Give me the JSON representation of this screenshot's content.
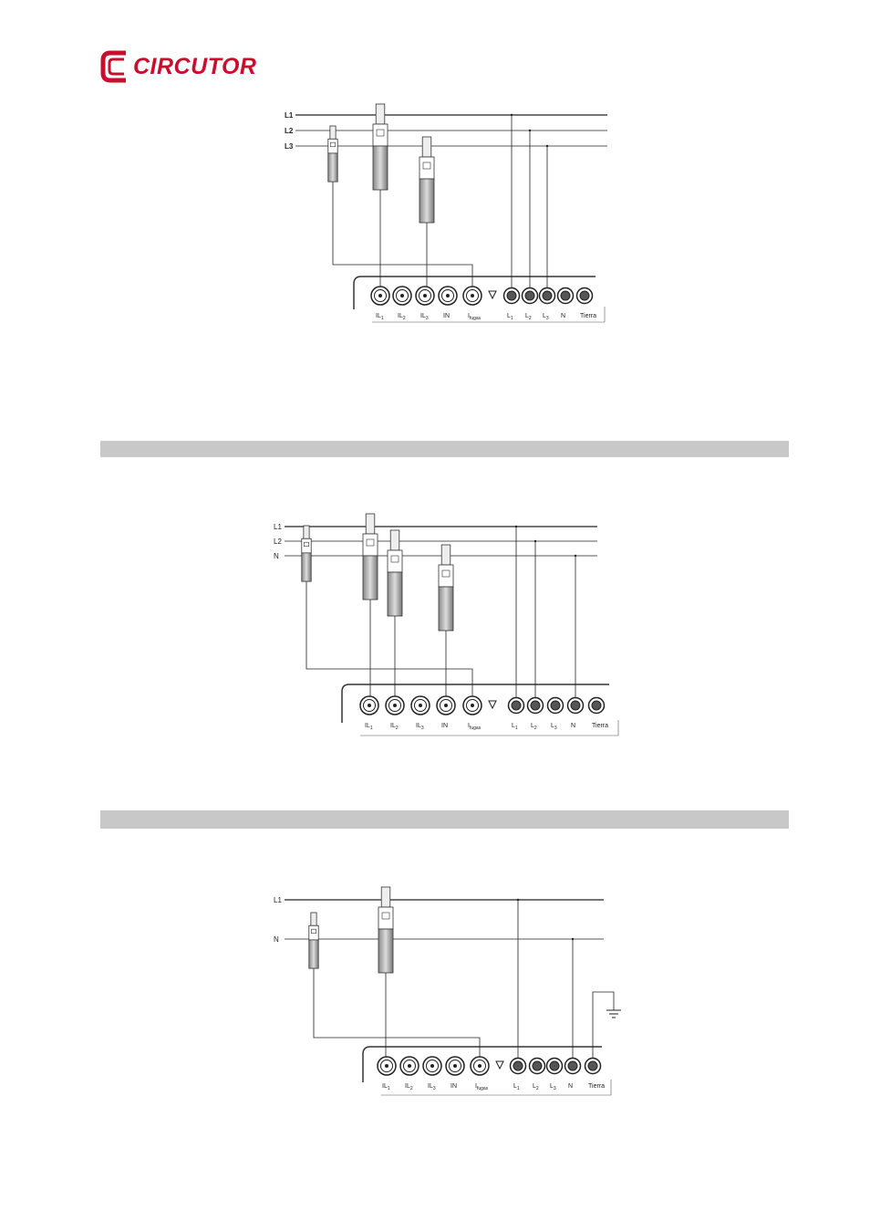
{
  "header": {
    "logo": "CIRCUTOR"
  },
  "diagrams": [
    {
      "lines": [
        "L1",
        "L2",
        "L3"
      ],
      "terminals": [
        {
          "main": "IL",
          "sub": "1"
        },
        {
          "main": "IL",
          "sub": "2"
        },
        {
          "main": "IL",
          "sub": "3"
        },
        {
          "main": "IN"
        },
        {
          "main": "I",
          "sub": "fugas"
        },
        {
          "main": "L",
          "sub": "1"
        },
        {
          "main": "L",
          "sub": "2"
        },
        {
          "main": "L",
          "sub": "3"
        },
        {
          "main": "N"
        },
        {
          "main": "Tierra"
        }
      ]
    },
    {
      "lines": [
        "L1",
        "L2",
        "N"
      ],
      "terminals": [
        {
          "main": "IL",
          "sub": "1"
        },
        {
          "main": "IL",
          "sub": "2"
        },
        {
          "main": "IL",
          "sub": "3"
        },
        {
          "main": "IN"
        },
        {
          "main": "I",
          "sub": "fugas"
        },
        {
          "main": "L",
          "sub": "1"
        },
        {
          "main": "L",
          "sub": "2"
        },
        {
          "main": "L",
          "sub": "3"
        },
        {
          "main": "N"
        },
        {
          "main": "Tierra"
        }
      ]
    },
    {
      "lines": [
        "L1",
        "N"
      ],
      "terminals": [
        {
          "main": "IL",
          "sub": "1"
        },
        {
          "main": "IL",
          "sub": "2"
        },
        {
          "main": "IL",
          "sub": "3"
        },
        {
          "main": "IN"
        },
        {
          "main": "I",
          "sub": "fugas"
        },
        {
          "main": "L",
          "sub": "1"
        },
        {
          "main": "L",
          "sub": "2"
        },
        {
          "main": "L",
          "sub": "3"
        },
        {
          "main": "N"
        },
        {
          "main": "Tierra"
        }
      ]
    }
  ]
}
